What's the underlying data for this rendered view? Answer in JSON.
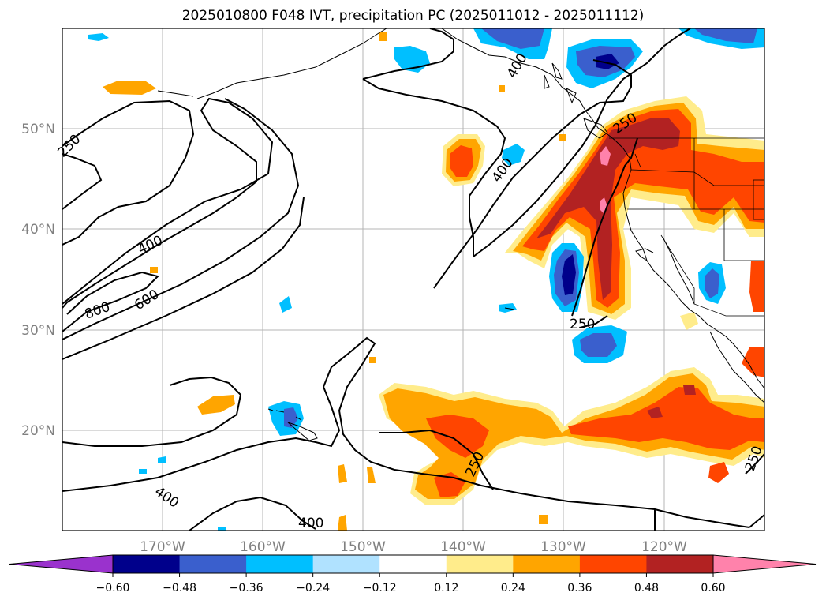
{
  "title": "2025010800 F048 IVT, precipitation PC (2025011012 - 2025011112)",
  "lon_ticks": [
    "170°W",
    "160°W",
    "150°W",
    "140°W",
    "130°W",
    "120°W"
  ],
  "lat_ticks": [
    "50°N",
    "40°N",
    "30°N",
    "20°N"
  ],
  "contour_labels": [
    "250",
    "400",
    "800",
    "600",
    "400",
    "250",
    "400",
    "250",
    "400",
    "400",
    "250",
    "250",
    "400"
  ],
  "colorbar": {
    "colors": [
      "#9a32cd",
      "#00008b",
      "#3a5fcd",
      "#00bfff",
      "#b0e2ff",
      "#ffffff",
      "#ffec8b",
      "#ffa500",
      "#ff4500",
      "#b22222",
      "#ff82ab"
    ],
    "under_color": "#9a32cd",
    "over_color": "#ff82ab",
    "tick_labels": [
      "−0.60",
      "−0.48",
      "−0.36",
      "−0.24",
      "−0.12",
      "0.12",
      "0.24",
      "0.36",
      "0.48",
      "0.60"
    ]
  }
}
